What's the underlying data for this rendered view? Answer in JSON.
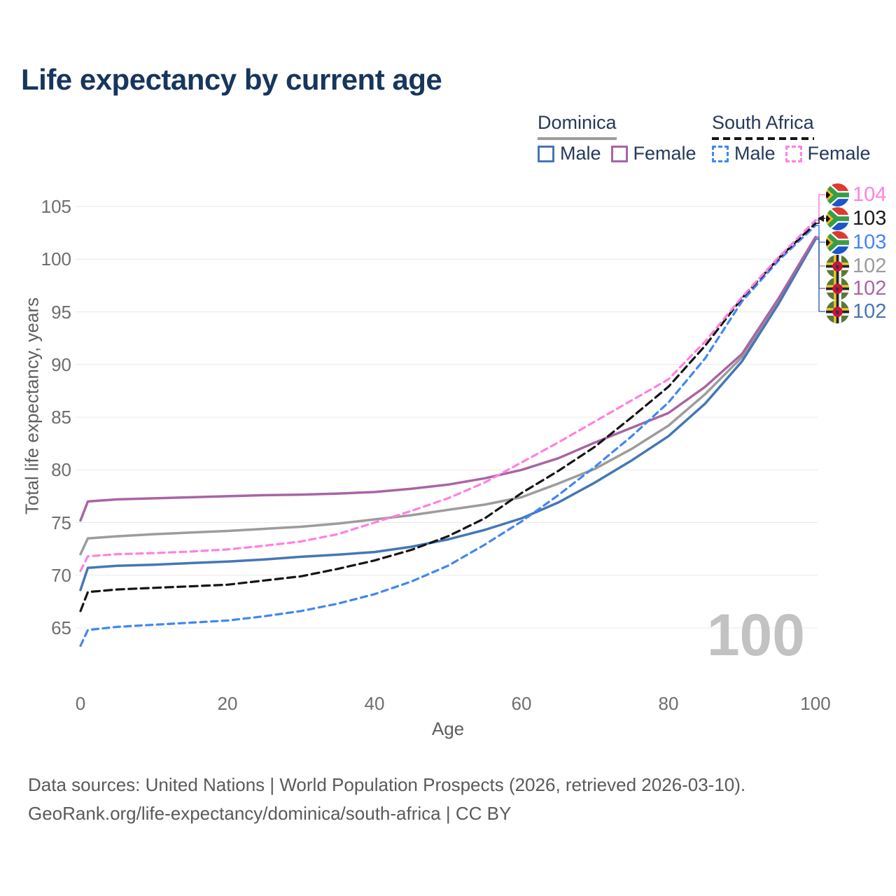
{
  "title": "Life expectancy by current age",
  "watermark_age": "100",
  "axes": {
    "x_label": "Age",
    "y_label": "Total life expectancy, years"
  },
  "legend": {
    "groups": [
      {
        "label": "Dominica",
        "line_style": "solid",
        "line_color": "#9c9c9c",
        "items": [
          {
            "label": "Male",
            "series": "dm_male",
            "color": "#4577b5",
            "dashed": false
          },
          {
            "label": "Female",
            "series": "dm_female",
            "color": "#a865a4",
            "dashed": false
          }
        ]
      },
      {
        "label": "South Africa",
        "line_style": "dashed",
        "line_color": "#151515",
        "items": [
          {
            "label": "Male",
            "series": "za_male",
            "color": "#4187f2",
            "dashed": true
          },
          {
            "label": "Female",
            "series": "za_female",
            "color": "#ff80e0",
            "dashed": true
          }
        ]
      }
    ]
  },
  "chart_data": {
    "type": "line",
    "title": "Life expectancy by current age",
    "xlabel": "Age",
    "ylabel": "Total life expectancy, years",
    "xlim": [
      0,
      100
    ],
    "ylim": [
      62,
      106
    ],
    "x_ticks": [
      0,
      20,
      40,
      60,
      80,
      100
    ],
    "y_ticks": [
      65,
      70,
      75,
      80,
      85,
      90,
      95,
      100,
      105
    ],
    "grid": "horizontal-only",
    "legend_position": "top-right",
    "ages": [
      0,
      1,
      5,
      10,
      15,
      20,
      25,
      30,
      35,
      40,
      45,
      50,
      55,
      60,
      65,
      70,
      75,
      80,
      85,
      90,
      95,
      100
    ],
    "series": [
      {
        "key": "dm_all",
        "name": "Dominica (both sexes)",
        "country": "Dominica",
        "color": "#9c9c9c",
        "dashed": false,
        "values": [
          72.0,
          73.5,
          73.7,
          73.9,
          74.05,
          74.2,
          74.4,
          74.6,
          74.9,
          75.3,
          75.7,
          76.2,
          76.7,
          77.4,
          78.7,
          80.1,
          82.0,
          84.2,
          87.2,
          90.7,
          96.1,
          102.0
        ]
      },
      {
        "key": "dm_male",
        "name": "Dominica Male",
        "country": "Dominica",
        "color": "#4577b5",
        "dashed": false,
        "values": [
          68.6,
          70.7,
          70.9,
          71.0,
          71.15,
          71.3,
          71.5,
          71.75,
          71.95,
          72.2,
          72.7,
          73.4,
          74.3,
          75.4,
          76.9,
          78.8,
          80.9,
          83.2,
          86.3,
          90.3,
          95.8,
          101.9
        ]
      },
      {
        "key": "dm_female",
        "name": "Dominica Female",
        "country": "Dominica",
        "color": "#a865a4",
        "dashed": false,
        "values": [
          75.2,
          77.0,
          77.2,
          77.3,
          77.4,
          77.5,
          77.6,
          77.65,
          77.75,
          77.9,
          78.2,
          78.6,
          79.2,
          80.0,
          81.1,
          82.6,
          84.0,
          85.4,
          87.9,
          91.0,
          96.3,
          102.1
        ]
      },
      {
        "key": "za_male",
        "name": "South Africa Male",
        "country": "South Africa",
        "color": "#4187f2",
        "dashed": true,
        "values": [
          63.3,
          64.8,
          65.1,
          65.3,
          65.5,
          65.7,
          66.1,
          66.6,
          67.3,
          68.2,
          69.4,
          70.9,
          72.9,
          75.1,
          77.6,
          80.3,
          83.2,
          86.4,
          90.6,
          96.0,
          99.9,
          103.2
        ]
      },
      {
        "key": "za_all",
        "name": "South Africa (both sexes)",
        "country": "South Africa",
        "color": "#151515",
        "dashed": true,
        "values": [
          66.6,
          68.4,
          68.65,
          68.8,
          68.95,
          69.1,
          69.5,
          69.9,
          70.6,
          71.4,
          72.4,
          73.7,
          75.4,
          77.8,
          79.9,
          82.2,
          85.0,
          87.9,
          91.8,
          96.3,
          100.1,
          103.4
        ]
      },
      {
        "key": "za_female",
        "name": "South Africa Female",
        "country": "South Africa",
        "color": "#ff80e0",
        "dashed": true,
        "values": [
          70.4,
          71.8,
          72.0,
          72.1,
          72.25,
          72.45,
          72.8,
          73.2,
          73.9,
          75.0,
          76.1,
          77.3,
          78.8,
          80.7,
          82.6,
          84.6,
          86.6,
          88.6,
          92.2,
          96.4,
          100.2,
          103.7
        ]
      }
    ],
    "end_labels": [
      {
        "value": "104",
        "series": "za_female",
        "color": "#ff80e0",
        "flag": "za",
        "arrow": false
      },
      {
        "value": "103",
        "series": "za_all",
        "color": "#1a1a1a",
        "flag": "za",
        "arrow": true
      },
      {
        "value": "103",
        "series": "za_male",
        "color": "#4187f2",
        "flag": "za",
        "arrow": false
      },
      {
        "value": "102",
        "series": "dm_all",
        "color": "#9c9c9c",
        "flag": "dm",
        "arrow": false
      },
      {
        "value": "102",
        "series": "dm_female",
        "color": "#a865a4",
        "flag": "dm",
        "arrow": false
      },
      {
        "value": "102",
        "series": "dm_male",
        "color": "#4577b5",
        "flag": "dm",
        "arrow": false
      }
    ]
  },
  "footer": {
    "line1": "Data sources: United Nations | World Population Prospects (2026, retrieved 2026-03-10).",
    "line2": "GeoRank.org/life-expectancy/dominica/south-africa | CC BY"
  }
}
